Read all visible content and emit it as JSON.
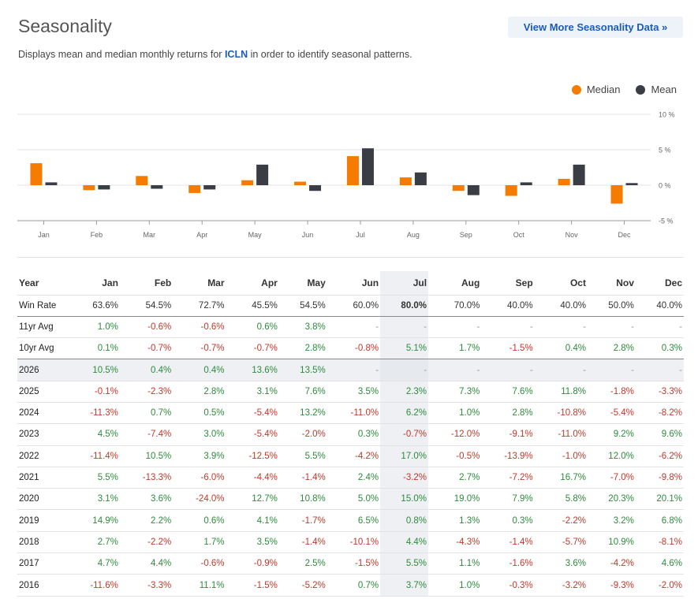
{
  "header": {
    "title": "Seasonality",
    "more_button": "View More Seasonality Data »",
    "subtitle_pre": "Displays mean and median monthly returns for ",
    "ticker": "ICLN",
    "subtitle_post": " in order to identify seasonal patterns."
  },
  "colors": {
    "median": "#f57c00",
    "mean": "#3a3d44",
    "positive": "#2e8b3d",
    "negative": "#c0392b",
    "accent": "#1a5bbf"
  },
  "chart_data": {
    "type": "bar",
    "categories": [
      "Jan",
      "Feb",
      "Mar",
      "Apr",
      "May",
      "Jun",
      "Jul",
      "Aug",
      "Sep",
      "Oct",
      "Nov",
      "Dec"
    ],
    "series": [
      {
        "name": "Median",
        "values": [
          3.1,
          -0.7,
          1.3,
          -1.1,
          0.7,
          0.5,
          4.1,
          1.1,
          -0.8,
          -1.5,
          0.9,
          -2.6
        ]
      },
      {
        "name": "Mean",
        "values": [
          0.4,
          -0.6,
          -0.5,
          -0.6,
          2.9,
          -0.8,
          5.2,
          1.8,
          -1.4,
          0.4,
          2.9,
          0.3
        ]
      }
    ],
    "yticks": [
      "10 %",
      "5 %",
      "0 %",
      "-5 %"
    ],
    "ytick_values": [
      10,
      5,
      0,
      -5
    ],
    "ylim": [
      -5,
      10
    ],
    "legend": [
      "Median",
      "Mean"
    ],
    "legend_position": "top-right"
  },
  "table": {
    "year_label": "Year",
    "months": [
      "Jan",
      "Feb",
      "Mar",
      "Apr",
      "May",
      "Jun",
      "Jul",
      "Aug",
      "Sep",
      "Oct",
      "Nov",
      "Dec"
    ],
    "rows": [
      {
        "label": "Win Rate",
        "values": [
          "63.6%",
          "54.5%",
          "72.7%",
          "45.5%",
          "54.5%",
          "60.0%",
          "80.0%",
          "70.0%",
          "40.0%",
          "40.0%",
          "50.0%",
          "40.0%"
        ]
      },
      {
        "label": "11yr Avg",
        "values": [
          "1.0%",
          "-0.6%",
          "-0.6%",
          "0.6%",
          "3.8%",
          "-",
          "-",
          "-",
          "-",
          "-",
          "-",
          "-"
        ]
      },
      {
        "label": "10yr Avg",
        "values": [
          "0.1%",
          "-0.7%",
          "-0.7%",
          "-0.7%",
          "2.8%",
          "-0.8%",
          "5.1%",
          "1.7%",
          "-1.5%",
          "0.4%",
          "2.8%",
          "0.3%"
        ]
      },
      {
        "label": "2026",
        "values": [
          "10.5%",
          "0.4%",
          "0.4%",
          "13.6%",
          "13.5%",
          "-",
          "-",
          "-",
          "-",
          "-",
          "-",
          "-"
        ]
      },
      {
        "label": "2025",
        "values": [
          "-0.1%",
          "-2.3%",
          "2.8%",
          "3.1%",
          "7.6%",
          "3.5%",
          "2.3%",
          "7.3%",
          "7.6%",
          "11.8%",
          "-1.8%",
          "-3.3%"
        ]
      },
      {
        "label": "2024",
        "values": [
          "-11.3%",
          "0.7%",
          "0.5%",
          "-5.4%",
          "13.2%",
          "-11.0%",
          "6.2%",
          "1.0%",
          "2.8%",
          "-10.8%",
          "-5.4%",
          "-8.2%"
        ]
      },
      {
        "label": "2023",
        "values": [
          "4.5%",
          "-7.4%",
          "3.0%",
          "-5.4%",
          "-2.0%",
          "0.3%",
          "-0.7%",
          "-12.0%",
          "-9.1%",
          "-11.0%",
          "9.2%",
          "9.6%"
        ]
      },
      {
        "label": "2022",
        "values": [
          "-11.4%",
          "10.5%",
          "3.9%",
          "-12.5%",
          "5.5%",
          "-4.2%",
          "17.0%",
          "-0.5%",
          "-13.9%",
          "-1.0%",
          "12.0%",
          "-6.2%"
        ]
      },
      {
        "label": "2021",
        "values": [
          "5.5%",
          "-13.3%",
          "-6.0%",
          "-4.4%",
          "-1.4%",
          "2.4%",
          "-3.2%",
          "2.7%",
          "-7.2%",
          "16.7%",
          "-7.0%",
          "-9.8%"
        ]
      },
      {
        "label": "2020",
        "values": [
          "3.1%",
          "3.6%",
          "-24.0%",
          "12.7%",
          "10.8%",
          "5.0%",
          "15.0%",
          "19.0%",
          "7.9%",
          "5.8%",
          "20.3%",
          "20.1%"
        ]
      },
      {
        "label": "2019",
        "values": [
          "14.9%",
          "2.2%",
          "0.6%",
          "4.1%",
          "-1.7%",
          "6.5%",
          "0.8%",
          "1.3%",
          "0.3%",
          "-2.2%",
          "3.2%",
          "6.8%"
        ]
      },
      {
        "label": "2018",
        "values": [
          "2.7%",
          "-2.2%",
          "1.7%",
          "3.5%",
          "-1.4%",
          "-10.1%",
          "4.4%",
          "-4.3%",
          "-1.4%",
          "-5.7%",
          "10.9%",
          "-8.1%"
        ]
      },
      {
        "label": "2017",
        "values": [
          "4.7%",
          "4.4%",
          "-0.6%",
          "-0.9%",
          "2.5%",
          "-1.5%",
          "5.5%",
          "1.1%",
          "-1.6%",
          "3.6%",
          "-4.2%",
          "4.6%"
        ]
      },
      {
        "label": "2016",
        "values": [
          "-11.6%",
          "-3.3%",
          "11.1%",
          "-1.5%",
          "-5.2%",
          "0.7%",
          "3.7%",
          "1.0%",
          "-0.3%",
          "-3.2%",
          "-9.3%",
          "-2.0%"
        ]
      }
    ]
  }
}
